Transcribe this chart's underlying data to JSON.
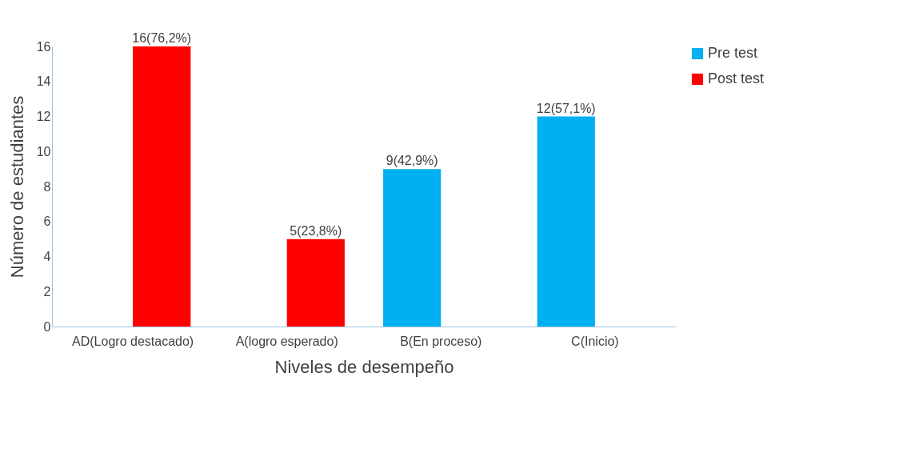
{
  "chart_data": {
    "type": "bar",
    "xlabel": "Niveles de desempeño",
    "ylabel": "Número de estudiantes",
    "categories": [
      "AD(Logro destacado)",
      "A(logro esperado)",
      "B(En proceso)",
      "C(Inicio)"
    ],
    "series": [
      {
        "name": "Pre test",
        "color": "#00b0f0",
        "values": [
          0,
          0,
          9,
          12
        ],
        "value_labels": [
          null,
          null,
          "9(42,9%)",
          "12(57,1%)"
        ]
      },
      {
        "name": "Post test",
        "color": "#ff0000",
        "values": [
          16,
          5,
          0,
          0
        ],
        "value_labels": [
          "16(76,2%)",
          "5(23,8%)",
          null,
          null
        ]
      }
    ],
    "ylim": [
      0,
      16
    ],
    "yticks": [
      0,
      2,
      4,
      6,
      8,
      10,
      12,
      14,
      16
    ],
    "legend": "right"
  }
}
